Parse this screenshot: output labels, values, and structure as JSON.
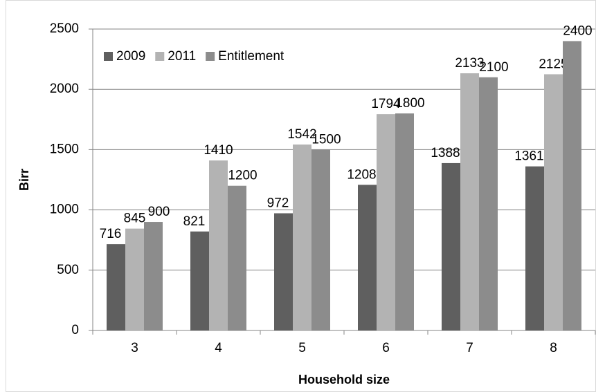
{
  "chart_data": {
    "type": "bar",
    "x_label": "Household size",
    "y_label": "Birr",
    "categories": [
      "3",
      "4",
      "5",
      "6",
      "7",
      "8"
    ],
    "series": [
      {
        "name": "2009",
        "color": "#5f5f5f",
        "values": [
          716,
          821,
          972,
          1208,
          1388,
          1361
        ]
      },
      {
        "name": "2011",
        "color": "#b3b3b3",
        "values": [
          845,
          1410,
          1542,
          1794,
          2133,
          2125
        ]
      },
      {
        "name": "Entitlement",
        "color": "#8c8c8c",
        "values": [
          900,
          1200,
          1500,
          1800,
          2100,
          2400
        ]
      }
    ],
    "ylim": [
      0,
      2500
    ],
    "yticks": [
      0,
      500,
      1000,
      1500,
      2000,
      2500
    ],
    "grid": true,
    "legend": "top-left"
  }
}
